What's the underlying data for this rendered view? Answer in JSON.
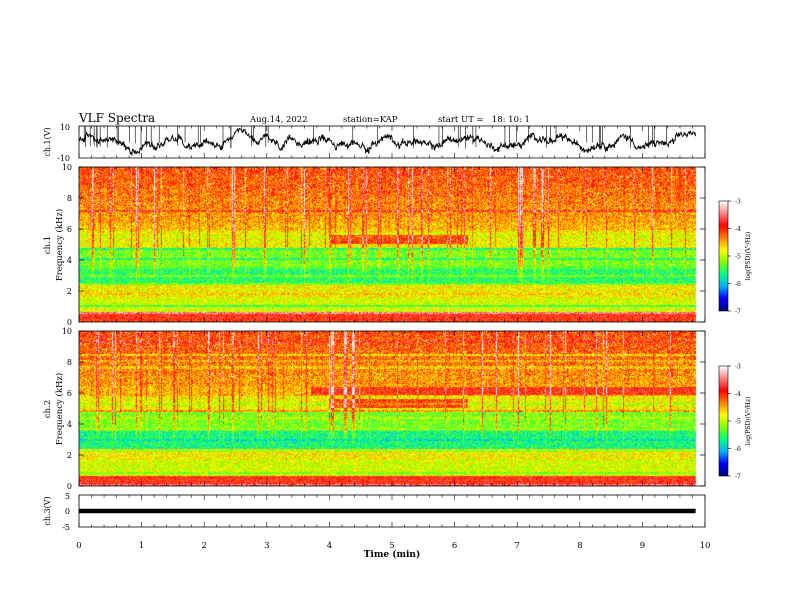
{
  "header": {
    "title": "VLF Spectra",
    "date": "Aug.14, 2022",
    "station": "station=KAP",
    "start": "start UT =   18: 10: 1"
  },
  "chart_data": [
    {
      "type": "line",
      "name": "ch1-waveform",
      "ylabel": "ch.1(V)",
      "ylim": [
        -10,
        10
      ],
      "yticks": [
        "10",
        "-10"
      ],
      "xlim": [
        0,
        10
      ]
    },
    {
      "type": "heatmap",
      "name": "ch1-spectrogram",
      "ylabel": "ch.1\nFrequency (kHz)",
      "ylabel_lines": [
        "ch.1",
        "Frequency (kHz)"
      ],
      "ylim": [
        0,
        10
      ],
      "yticks": [
        "0",
        "2",
        "4",
        "6",
        "8",
        "10"
      ],
      "xlim": [
        0,
        10
      ],
      "data_end_min": 9.85,
      "colorbar": {
        "min": -7,
        "max": -3,
        "ticks": [
          "-3",
          "-4",
          "-5",
          "-6",
          "-7"
        ],
        "label": "log(PSD)(V²/Hz)"
      }
    },
    {
      "type": "heatmap",
      "name": "ch2-spectrogram",
      "ylabel": "ch.2\nFrequency (kHz)",
      "ylabel_lines": [
        "ch.2",
        "Frequency (kHz)"
      ],
      "ylim": [
        0,
        10
      ],
      "yticks": [
        "0",
        "2",
        "4",
        "6",
        "8",
        "10"
      ],
      "xlim": [
        0,
        10
      ],
      "data_end_min": 9.85,
      "colorbar": {
        "min": -7,
        "max": -3,
        "ticks": [
          "-3",
          "-4",
          "-5",
          "-6",
          "-7"
        ],
        "label": "log(PSD)(V²/Hz)"
      }
    },
    {
      "type": "line",
      "name": "ch3-waveform",
      "ylabel": "ch.3(V)",
      "ylim": [
        -5,
        5
      ],
      "yticks": [
        "5",
        "0",
        "-5"
      ],
      "xlim": [
        0,
        10
      ],
      "values_constant_band": [
        -0.7,
        0.7
      ]
    }
  ],
  "xaxis": {
    "label": "Time (min)",
    "ticks": [
      "0",
      "1",
      "2",
      "3",
      "4",
      "5",
      "6",
      "7",
      "8",
      "9",
      "10"
    ]
  },
  "colors": {
    "spectrum": [
      "#000080",
      "#0000ff",
      "#00b4ff",
      "#00ff80",
      "#80ff00",
      "#ffff00",
      "#ff8000",
      "#ff0000",
      "#ff8080",
      "#ffffff"
    ]
  }
}
